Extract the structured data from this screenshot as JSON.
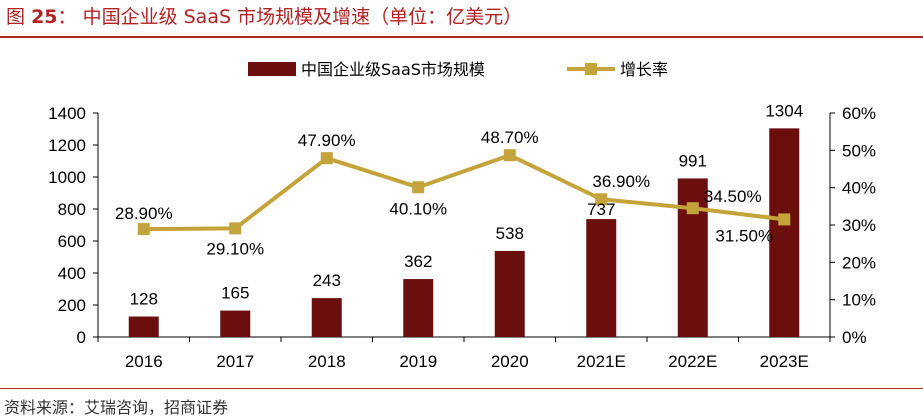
{
  "figure": {
    "prefix": "图",
    "number": "25",
    "colon": "：",
    "title": "中国企业级 SaaS 市场规模及增速（单位：亿美元）",
    "source": "资料来源：艾瑞咨询，招商证券"
  },
  "colors": {
    "bar": "#6B0E0E",
    "line": "#C4A33A",
    "title": "#B22222"
  },
  "chart_data": {
    "type": "bar+line",
    "categories": [
      "2016",
      "2017",
      "2018",
      "2019",
      "2020",
      "2021E",
      "2022E",
      "2023E"
    ],
    "series": [
      {
        "name": "中国企业级SaaS市场规模",
        "type": "bar",
        "axis": "left",
        "values": [
          128,
          165,
          243,
          362,
          538,
          737,
          991,
          1304
        ],
        "labels": [
          "128",
          "165",
          "243",
          "362",
          "538",
          "737",
          "991",
          "1304"
        ]
      },
      {
        "name": "增长率",
        "type": "line",
        "axis": "right",
        "values": [
          28.9,
          29.1,
          47.9,
          40.1,
          48.7,
          36.9,
          34.5,
          31.5
        ],
        "labels": [
          "28.90%",
          "29.10%",
          "47.90%",
          "40.10%",
          "48.70%",
          "36.90%",
          "34.50%",
          "31.50%"
        ]
      }
    ],
    "y_left": {
      "ylim": [
        0,
        1400
      ],
      "ticks": [
        "0",
        "200",
        "400",
        "600",
        "800",
        "1000",
        "1200",
        "1400"
      ]
    },
    "y_right": {
      "ylim": [
        0,
        60
      ],
      "ticks": [
        "0%",
        "10%",
        "20%",
        "30%",
        "40%",
        "50%",
        "60%"
      ]
    },
    "grid": false,
    "legend_position": "top-center"
  }
}
